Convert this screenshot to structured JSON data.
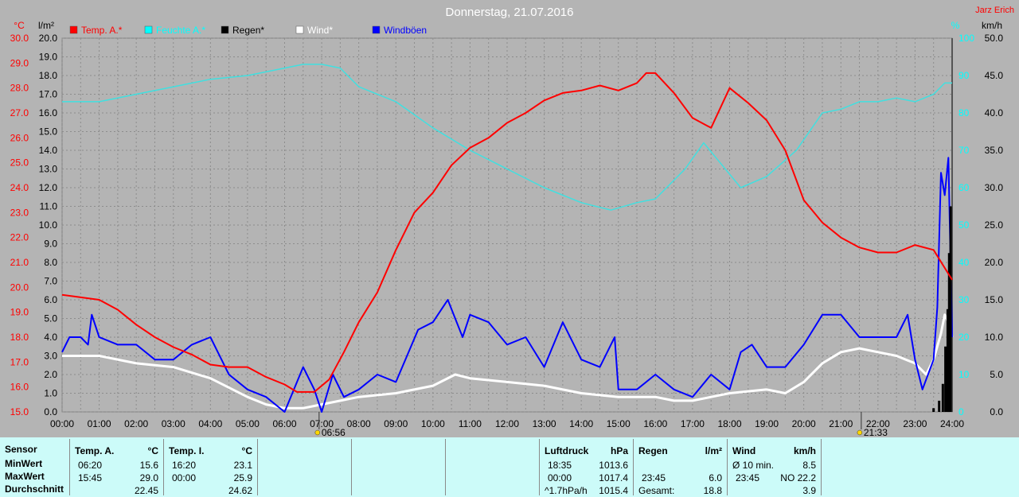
{
  "chart_data": {
    "type": "line",
    "title": "Donnerstag, 21.07.2016",
    "author": "Jarz Erich",
    "x_ticks": [
      "00:00",
      "01:00",
      "02:00",
      "03:00",
      "04:00",
      "05:00",
      "06:00",
      "07:00",
      "08:00",
      "09:00",
      "10:00",
      "11:00",
      "12:00",
      "13:00",
      "14:00",
      "15:00",
      "16:00",
      "17:00",
      "18:00",
      "19:00",
      "20:00",
      "21:00",
      "22:00",
      "23:00",
      "24:00"
    ],
    "markers": [
      {
        "time": 6.93,
        "label": "06:56"
      },
      {
        "time": 21.55,
        "label": "21:33"
      }
    ],
    "axes": {
      "temp": {
        "unit": "°C",
        "min": 15.0,
        "max": 30.0,
        "ticks": [
          "15.0",
          "16.0",
          "17.0",
          "18.0",
          "19.0",
          "20.0",
          "21.0",
          "22.0",
          "23.0",
          "24.0",
          "25.0",
          "26.0",
          "27.0",
          "28.0",
          "29.0",
          "30.0"
        ]
      },
      "rain": {
        "unit": "l/m²",
        "min": 0,
        "max": 20,
        "ticks": [
          "0.0",
          "1.0",
          "2.0",
          "3.0",
          "4.0",
          "5.0",
          "6.0",
          "7.0",
          "8.0",
          "9.0",
          "10.0",
          "11.0",
          "12.0",
          "13.0",
          "14.0",
          "15.0",
          "16.0",
          "17.0",
          "18.0",
          "19.0",
          "20.0"
        ]
      },
      "hum": {
        "unit": "%",
        "min": 0,
        "max": 100,
        "ticks": [
          "0",
          "10",
          "20",
          "30",
          "40",
          "50",
          "60",
          "70",
          "80",
          "90",
          "100"
        ]
      },
      "wind": {
        "unit": "km/h",
        "min": 0,
        "max": 50,
        "ticks": [
          "0.0",
          "5.0",
          "10.0",
          "15.0",
          "20.0",
          "25.0",
          "30.0",
          "35.0",
          "40.0",
          "45.0",
          "50.0"
        ]
      }
    },
    "legend": [
      {
        "name": "Temp. A.*",
        "color": "#ff0000"
      },
      {
        "name": "Feuchte A.*",
        "color": "#00ffff"
      },
      {
        "name": "Regen*",
        "color": "#000000"
      },
      {
        "name": "Wind*",
        "color": "#ffffff"
      },
      {
        "name": "Windböen",
        "color": "#0000ff"
      }
    ],
    "series": {
      "temp": [
        [
          0,
          19.7
        ],
        [
          0.5,
          19.6
        ],
        [
          1,
          19.5
        ],
        [
          1.5,
          19.1
        ],
        [
          2,
          18.5
        ],
        [
          2.5,
          18.0
        ],
        [
          3,
          17.6
        ],
        [
          3.5,
          17.3
        ],
        [
          4,
          16.9
        ],
        [
          4.5,
          16.8
        ],
        [
          5,
          16.8
        ],
        [
          5.5,
          16.4
        ],
        [
          6,
          16.1
        ],
        [
          6.33,
          15.8
        ],
        [
          6.8,
          15.8
        ],
        [
          7.2,
          16.3
        ],
        [
          7.6,
          17.4
        ],
        [
          8.0,
          18.6
        ],
        [
          8.5,
          19.8
        ],
        [
          9.0,
          21.5
        ],
        [
          9.5,
          23.0
        ],
        [
          10.0,
          23.8
        ],
        [
          10.5,
          24.9
        ],
        [
          11.0,
          25.6
        ],
        [
          11.5,
          26.0
        ],
        [
          12.0,
          26.6
        ],
        [
          12.5,
          27.0
        ],
        [
          13.0,
          27.5
        ],
        [
          13.5,
          27.8
        ],
        [
          14.0,
          27.9
        ],
        [
          14.5,
          28.1
        ],
        [
          15.0,
          27.9
        ],
        [
          15.5,
          28.2
        ],
        [
          15.75,
          28.6
        ],
        [
          16.0,
          28.6
        ],
        [
          16.5,
          27.8
        ],
        [
          17.0,
          26.8
        ],
        [
          17.5,
          26.4
        ],
        [
          18.0,
          28.0
        ],
        [
          18.5,
          27.4
        ],
        [
          19.0,
          26.7
        ],
        [
          19.5,
          25.5
        ],
        [
          20.0,
          23.5
        ],
        [
          20.5,
          22.6
        ],
        [
          21.0,
          22.0
        ],
        [
          21.5,
          21.6
        ],
        [
          22.0,
          21.4
        ],
        [
          22.5,
          21.4
        ],
        [
          23.0,
          21.7
        ],
        [
          23.5,
          21.5
        ],
        [
          24.0,
          20.3
        ]
      ],
      "hum": [
        [
          0,
          83
        ],
        [
          1,
          83
        ],
        [
          2,
          85
        ],
        [
          3,
          87
        ],
        [
          4,
          89
        ],
        [
          5,
          90
        ],
        [
          6,
          92
        ],
        [
          6.5,
          93
        ],
        [
          7,
          93
        ],
        [
          7.5,
          92
        ],
        [
          8,
          87
        ],
        [
          9,
          83
        ],
        [
          10,
          76
        ],
        [
          11,
          70
        ],
        [
          12,
          65
        ],
        [
          13,
          60
        ],
        [
          14,
          56
        ],
        [
          14.8,
          54
        ],
        [
          15.5,
          56
        ],
        [
          16,
          57
        ],
        [
          16.8,
          65
        ],
        [
          17.3,
          72
        ],
        [
          17.8,
          66
        ],
        [
          18.3,
          60
        ],
        [
          19,
          63
        ],
        [
          19.8,
          70
        ],
        [
          20.5,
          80
        ],
        [
          21.0,
          81
        ],
        [
          21.5,
          83
        ],
        [
          22,
          83
        ],
        [
          22.5,
          84
        ],
        [
          23,
          83
        ],
        [
          23.5,
          85
        ],
        [
          23.8,
          88
        ],
        [
          24,
          88
        ]
      ],
      "rain": [
        [
          23.5,
          0.2
        ],
        [
          23.65,
          0.6
        ],
        [
          23.75,
          1.5
        ],
        [
          23.82,
          3.5
        ],
        [
          23.88,
          5.5
        ],
        [
          23.92,
          8.5
        ],
        [
          23.96,
          11.0
        ]
      ],
      "wind": [
        [
          0,
          7.5
        ],
        [
          1,
          7.5
        ],
        [
          2,
          6.5
        ],
        [
          3,
          6.0
        ],
        [
          4,
          4.5
        ],
        [
          5,
          2.0
        ],
        [
          5.5,
          1.0
        ],
        [
          6,
          0.5
        ],
        [
          6.5,
          0.5
        ],
        [
          7,
          1.0
        ],
        [
          7.5,
          1.5
        ],
        [
          8,
          2.0
        ],
        [
          9,
          2.5
        ],
        [
          10,
          3.5
        ],
        [
          10.6,
          5.0
        ],
        [
          11,
          4.5
        ],
        [
          12,
          4.0
        ],
        [
          13,
          3.5
        ],
        [
          14,
          2.5
        ],
        [
          15,
          2.0
        ],
        [
          16,
          2.0
        ],
        [
          16.5,
          1.5
        ],
        [
          17,
          1.5
        ],
        [
          17.5,
          2.0
        ],
        [
          18,
          2.5
        ],
        [
          19,
          3.0
        ],
        [
          19.5,
          2.5
        ],
        [
          20,
          4.0
        ],
        [
          20.5,
          6.5
        ],
        [
          21,
          8.0
        ],
        [
          21.5,
          8.5
        ],
        [
          22,
          8.0
        ],
        [
          22.5,
          7.5
        ],
        [
          23,
          6.5
        ],
        [
          23.3,
          5.0
        ],
        [
          23.5,
          7.0
        ],
        [
          23.7,
          10.5
        ],
        [
          23.8,
          13.0
        ],
        [
          23.9,
          12.0
        ],
        [
          24.0,
          10.0
        ]
      ],
      "gusts": [
        [
          0,
          8
        ],
        [
          0.2,
          10
        ],
        [
          0.5,
          10
        ],
        [
          0.7,
          9
        ],
        [
          0.8,
          13
        ],
        [
          1,
          10
        ],
        [
          1.5,
          9
        ],
        [
          2,
          9
        ],
        [
          2.5,
          7
        ],
        [
          3,
          7
        ],
        [
          3.5,
          9
        ],
        [
          4,
          10
        ],
        [
          4.2,
          8
        ],
        [
          4.5,
          5
        ],
        [
          5,
          3
        ],
        [
          5.5,
          2
        ],
        [
          6,
          0
        ],
        [
          6.5,
          6
        ],
        [
          6.8,
          3
        ],
        [
          7,
          0
        ],
        [
          7.3,
          5
        ],
        [
          7.6,
          2
        ],
        [
          8,
          3
        ],
        [
          8.5,
          5
        ],
        [
          9,
          4
        ],
        [
          9.6,
          11
        ],
        [
          10,
          12
        ],
        [
          10.4,
          15
        ],
        [
          10.8,
          10
        ],
        [
          11,
          13
        ],
        [
          11.5,
          12
        ],
        [
          12,
          9
        ],
        [
          12.5,
          10
        ],
        [
          13,
          6
        ],
        [
          13.5,
          12
        ],
        [
          14,
          7
        ],
        [
          14.5,
          6
        ],
        [
          14.9,
          10
        ],
        [
          15,
          3
        ],
        [
          15.5,
          3
        ],
        [
          16,
          5
        ],
        [
          16.5,
          3
        ],
        [
          17,
          2
        ],
        [
          17.5,
          5
        ],
        [
          18,
          3
        ],
        [
          18.3,
          8
        ],
        [
          18.6,
          9
        ],
        [
          19,
          6
        ],
        [
          19.5,
          6
        ],
        [
          20,
          9
        ],
        [
          20.5,
          13
        ],
        [
          21,
          13
        ],
        [
          21.5,
          10
        ],
        [
          22,
          10
        ],
        [
          22.5,
          10
        ],
        [
          22.8,
          13
        ],
        [
          23,
          7
        ],
        [
          23.2,
          3
        ],
        [
          23.5,
          7
        ],
        [
          23.6,
          14
        ],
        [
          23.7,
          32
        ],
        [
          23.8,
          29
        ],
        [
          23.9,
          34
        ],
        [
          24,
          10
        ]
      ]
    }
  },
  "stats": {
    "sensor": {
      "header": "Sensor",
      "rows": [
        "MinWert",
        "MaxWert",
        "Durchschnitt"
      ]
    },
    "temp_a": {
      "header": "Temp. A.",
      "unit": "°C",
      "rows": [
        [
          "06:20",
          "15.6"
        ],
        [
          "15:45",
          "29.0"
        ],
        [
          "",
          "22.45"
        ]
      ]
    },
    "temp_i": {
      "header": "Temp. I.",
      "unit": "°C",
      "rows": [
        [
          "16:20",
          "23.1"
        ],
        [
          "00:00",
          "25.9"
        ],
        [
          "",
          "24.62"
        ]
      ]
    },
    "pressure": {
      "header": "Luftdruck",
      "unit": "hPa",
      "rows": [
        [
          "18:35",
          "1013.6"
        ],
        [
          "00:00",
          "1017.4"
        ],
        [
          "^1.7hPa/h",
          "1015.4"
        ]
      ]
    },
    "rain": {
      "header": "Regen",
      "unit": "l/m²",
      "rows": [
        [
          "",
          ""
        ],
        [
          "23:45",
          "6.0"
        ],
        [
          "Gesamt:",
          "18.8"
        ]
      ]
    },
    "wind": {
      "header": "Wind",
      "unit": "km/h",
      "rows": [
        [
          "Ø 10 min.",
          "8.5"
        ],
        [
          "23:45",
          "NO 22.2"
        ],
        [
          "",
          "3.9"
        ]
      ]
    }
  }
}
